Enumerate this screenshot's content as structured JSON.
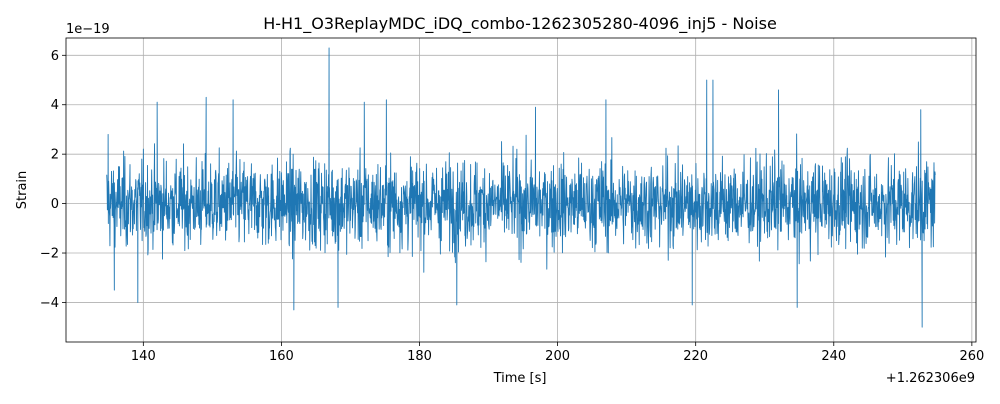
{
  "chart_data": {
    "type": "line",
    "title": "H-H1_O3ReplayMDC_iDQ_combo-1262305280-4096_inj5 - Noise",
    "xlabel": "Time [s]",
    "ylabel": "Strain",
    "x_offset_label": "+1.262306e9",
    "y_scale_label": "1e−19",
    "xlim": [
      128.8,
      260.6
    ],
    "ylim": [
      -5.6,
      6.7
    ],
    "x_ticks": [
      140,
      160,
      180,
      200,
      220,
      240,
      260
    ],
    "x_tick_labels": [
      "140",
      "160",
      "180",
      "200",
      "220",
      "240",
      "260"
    ],
    "y_ticks": [
      -4,
      -2,
      0,
      2,
      4,
      6
    ],
    "y_tick_labels": [
      "−4",
      "−2",
      "0",
      "2",
      "4",
      "6"
    ],
    "grid": true,
    "series": [
      {
        "color": "#1f77b4",
        "x_start": 134.7,
        "x_end": 254.7,
        "envelope_values": {
          "typical_positive": 2.0,
          "typical_negative": -2.0
        },
        "notable_peaks": [
          {
            "x": 134.9,
            "y": 2.8
          },
          {
            "x": 142.0,
            "y": 4.1
          },
          {
            "x": 149.1,
            "y": 4.3
          },
          {
            "x": 153.0,
            "y": 4.2
          },
          {
            "x": 166.9,
            "y": 6.3
          },
          {
            "x": 172.0,
            "y": 4.1
          },
          {
            "x": 175.2,
            "y": 4.2
          },
          {
            "x": 196.8,
            "y": 3.9
          },
          {
            "x": 207.0,
            "y": 4.2
          },
          {
            "x": 221.6,
            "y": 5.0
          },
          {
            "x": 222.5,
            "y": 5.0
          },
          {
            "x": 232.0,
            "y": 4.6
          },
          {
            "x": 252.6,
            "y": 3.8
          }
        ],
        "notable_troughs": [
          {
            "x": 135.8,
            "y": -3.5
          },
          {
            "x": 139.2,
            "y": -4.0
          },
          {
            "x": 161.8,
            "y": -4.3
          },
          {
            "x": 168.2,
            "y": -4.2
          },
          {
            "x": 185.4,
            "y": -4.1
          },
          {
            "x": 219.5,
            "y": -4.1
          },
          {
            "x": 234.7,
            "y": -4.2
          },
          {
            "x": 252.8,
            "y": -5.0
          }
        ]
      }
    ]
  }
}
